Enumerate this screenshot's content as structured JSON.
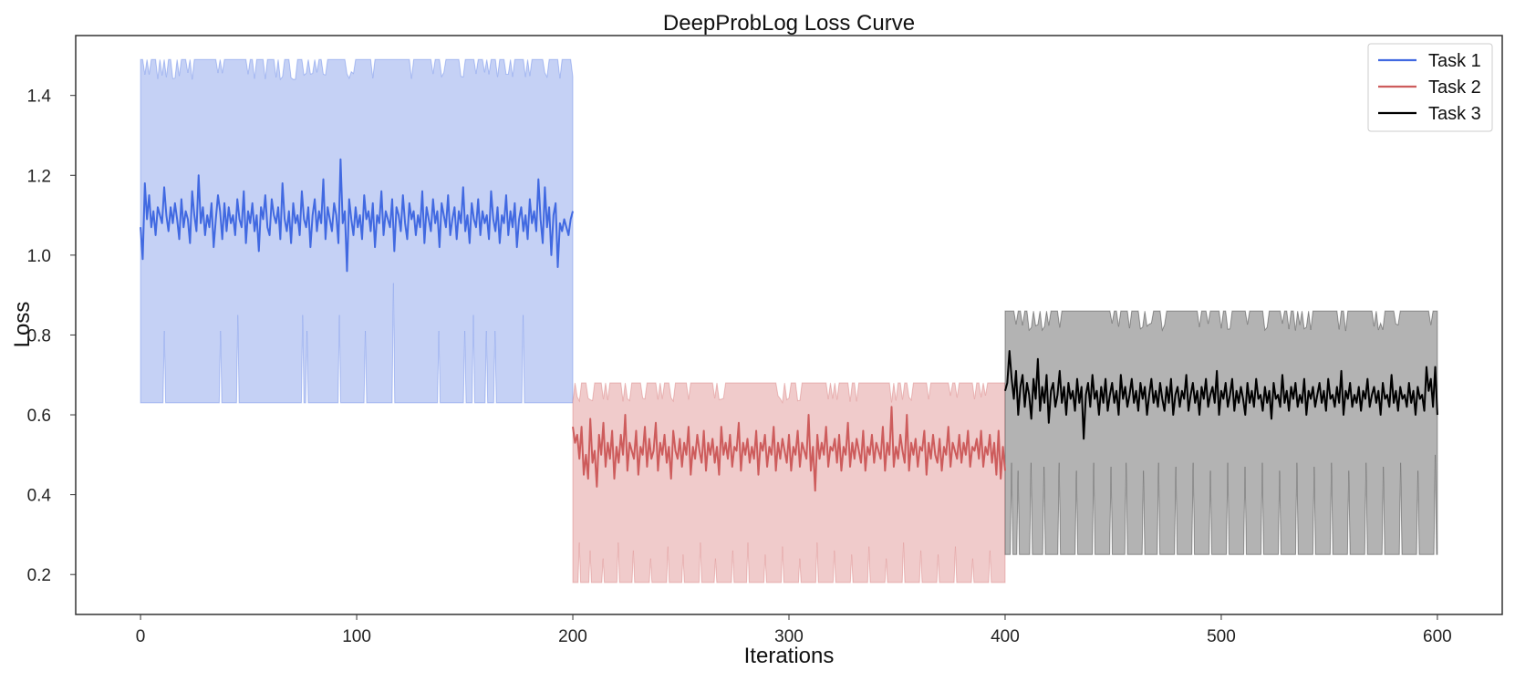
{
  "chart_data": {
    "type": "line",
    "title": "DeepProbLog Loss Curve",
    "xlabel": "Iterations",
    "ylabel": "Loss",
    "xlim": [
      -30,
      630
    ],
    "ylim": [
      0.1,
      1.55
    ],
    "xticks": [
      0,
      100,
      200,
      300,
      400,
      500,
      600
    ],
    "yticks": [
      0.2,
      0.4,
      0.6,
      0.8,
      1.0,
      1.2,
      1.4
    ],
    "ytick_labels": [
      "0.2",
      "0.4",
      "0.6",
      "0.8",
      "1.0",
      "1.2",
      "1.4"
    ],
    "grid": false,
    "legend_position": "top-right",
    "series": [
      {
        "name": "Task 1",
        "color": "#4169e1",
        "band_color": "#c5d1f5",
        "x_range": [
          0,
          200
        ],
        "mean_level": 1.09,
        "band_lower": 0.63,
        "band_upper": 1.49,
        "band_lower_spikes": [
          {
            "x": 11,
            "y": 0.81
          },
          {
            "x": 37,
            "y": 0.81
          },
          {
            "x": 45,
            "y": 0.85
          },
          {
            "x": 75,
            "y": 0.85
          },
          {
            "x": 77,
            "y": 0.81
          },
          {
            "x": 92,
            "y": 0.85
          },
          {
            "x": 104,
            "y": 0.81
          },
          {
            "x": 117,
            "y": 0.93
          },
          {
            "x": 138,
            "y": 0.81
          },
          {
            "x": 150,
            "y": 0.81
          },
          {
            "x": 154,
            "y": 0.85
          },
          {
            "x": 160,
            "y": 0.81
          },
          {
            "x": 164,
            "y": 0.81
          },
          {
            "x": 177,
            "y": 0.85
          }
        ],
        "values": [
          1.07,
          0.99,
          1.18,
          1.09,
          1.15,
          1.07,
          1.11,
          1.05,
          1.12,
          1.1,
          1.08,
          1.17,
          1.1,
          1.06,
          1.12,
          1.08,
          1.13,
          1.09,
          1.04,
          1.14,
          1.07,
          1.11,
          1.09,
          1.03,
          1.16,
          1.1,
          1.06,
          1.2,
          1.08,
          1.12,
          1.05,
          1.1,
          1.07,
          1.13,
          1.02,
          1.09,
          1.15,
          1.11,
          1.04,
          1.13,
          1.06,
          1.12,
          1.08,
          1.1,
          1.05,
          1.14,
          1.09,
          1.07,
          1.16,
          1.03,
          1.11,
          1.08,
          1.13,
          1.06,
          1.1,
          1.01,
          1.12,
          1.09,
          1.15,
          1.07,
          1.05,
          1.14,
          1.1,
          1.08,
          1.12,
          1.04,
          1.18,
          1.09,
          1.06,
          1.11,
          1.03,
          1.13,
          1.08,
          1.1,
          1.05,
          1.16,
          1.09,
          1.07,
          1.12,
          1.02,
          1.1,
          1.14,
          1.06,
          1.11,
          1.08,
          1.19,
          1.04,
          1.12,
          1.09,
          1.06,
          1.13,
          1.1,
          1.03,
          1.24,
          1.08,
          1.11,
          0.96,
          1.14,
          1.09,
          1.05,
          1.12,
          1.07,
          1.1,
          1.04,
          1.15,
          1.09,
          1.11,
          1.06,
          1.13,
          1.02,
          1.1,
          1.08,
          1.16,
          1.05,
          1.11,
          1.09,
          1.07,
          1.14,
          1.01,
          1.12,
          1.1,
          1.06,
          1.15,
          1.08,
          1.04,
          1.13,
          1.09,
          1.11,
          1.05,
          1.1,
          1.07,
          1.16,
          1.03,
          1.12,
          1.09,
          1.06,
          1.14,
          1.08,
          1.11,
          1.02,
          1.13,
          1.1,
          1.07,
          1.15,
          1.05,
          1.09,
          1.12,
          1.04,
          1.11,
          1.08,
          1.17,
          1.06,
          1.1,
          1.03,
          1.13,
          1.09,
          1.07,
          1.14,
          1.05,
          1.11,
          1.08,
          1.1,
          1.04,
          1.16,
          1.09,
          1.06,
          1.12,
          1.03,
          1.1,
          1.08,
          1.15,
          1.05,
          1.11,
          1.07,
          1.13,
          1.02,
          1.09,
          1.12,
          1.06,
          1.1,
          1.04,
          1.14,
          1.08,
          1.11,
          1.06,
          1.19,
          1.09,
          1.03,
          1.17,
          1.07,
          1.12,
          1.0,
          1.1,
          1.13,
          0.97,
          1.08,
          1.06,
          1.09,
          1.07,
          1.05,
          1.09,
          1.11
        ]
      },
      {
        "name": "Task 2",
        "color": "#cd5c5c",
        "band_color": "#f0cbcb",
        "x_range": [
          200,
          400
        ],
        "mean_level": 0.52,
        "band_lower": 0.18,
        "band_upper": 0.68,
        "band_lower_spikes": [
          {
            "x": 203,
            "y": 0.28
          },
          {
            "x": 208,
            "y": 0.26
          },
          {
            "x": 214,
            "y": 0.24
          },
          {
            "x": 221,
            "y": 0.28
          },
          {
            "x": 228,
            "y": 0.26
          },
          {
            "x": 236,
            "y": 0.24
          },
          {
            "x": 244,
            "y": 0.27
          },
          {
            "x": 251,
            "y": 0.25
          },
          {
            "x": 259,
            "y": 0.28
          },
          {
            "x": 266,
            "y": 0.24
          },
          {
            "x": 274,
            "y": 0.26
          },
          {
            "x": 281,
            "y": 0.28
          },
          {
            "x": 289,
            "y": 0.25
          },
          {
            "x": 297,
            "y": 0.27
          },
          {
            "x": 305,
            "y": 0.24
          },
          {
            "x": 313,
            "y": 0.28
          },
          {
            "x": 321,
            "y": 0.26
          },
          {
            "x": 329,
            "y": 0.25
          },
          {
            "x": 337,
            "y": 0.27
          },
          {
            "x": 345,
            "y": 0.24
          },
          {
            "x": 353,
            "y": 0.28
          },
          {
            "x": 361,
            "y": 0.26
          },
          {
            "x": 369,
            "y": 0.25
          },
          {
            "x": 377,
            "y": 0.27
          },
          {
            "x": 385,
            "y": 0.24
          },
          {
            "x": 393,
            "y": 0.26
          }
        ],
        "values": [
          0.57,
          0.53,
          0.55,
          0.49,
          0.57,
          0.45,
          0.5,
          0.44,
          0.59,
          0.48,
          0.51,
          0.42,
          0.55,
          0.5,
          0.58,
          0.47,
          0.53,
          0.49,
          0.56,
          0.44,
          0.52,
          0.48,
          0.55,
          0.5,
          0.6,
          0.46,
          0.53,
          0.51,
          0.49,
          0.56,
          0.45,
          0.52,
          0.5,
          0.57,
          0.47,
          0.54,
          0.49,
          0.51,
          0.58,
          0.46,
          0.53,
          0.5,
          0.55,
          0.48,
          0.52,
          0.44,
          0.56,
          0.51,
          0.49,
          0.54,
          0.47,
          0.53,
          0.5,
          0.57,
          0.45,
          0.52,
          0.49,
          0.55,
          0.51,
          0.48,
          0.56,
          0.46,
          0.53,
          0.5,
          0.54,
          0.48,
          0.52,
          0.45,
          0.57,
          0.5,
          0.53,
          0.49,
          0.55,
          0.47,
          0.52,
          0.51,
          0.58,
          0.46,
          0.53,
          0.5,
          0.54,
          0.48,
          0.52,
          0.49,
          0.56,
          0.45,
          0.53,
          0.51,
          0.55,
          0.47,
          0.52,
          0.5,
          0.57,
          0.46,
          0.53,
          0.49,
          0.54,
          0.51,
          0.48,
          0.55,
          0.46,
          0.52,
          0.5,
          0.56,
          0.47,
          0.53,
          0.51,
          0.49,
          0.6,
          0.46,
          0.52,
          0.41,
          0.55,
          0.49,
          0.53,
          0.5,
          0.57,
          0.47,
          0.52,
          0.51,
          0.54,
          0.48,
          0.55,
          0.46,
          0.52,
          0.5,
          0.58,
          0.47,
          0.53,
          0.49,
          0.54,
          0.51,
          0.48,
          0.56,
          0.46,
          0.52,
          0.5,
          0.55,
          0.48,
          0.53,
          0.51,
          0.49,
          0.57,
          0.46,
          0.53,
          0.5,
          0.62,
          0.47,
          0.52,
          0.49,
          0.55,
          0.51,
          0.48,
          0.6,
          0.46,
          0.53,
          0.5,
          0.54,
          0.47,
          0.52,
          0.51,
          0.56,
          0.45,
          0.53,
          0.49,
          0.55,
          0.5,
          0.48,
          0.54,
          0.46,
          0.52,
          0.5,
          0.57,
          0.47,
          0.53,
          0.51,
          0.49,
          0.55,
          0.48,
          0.53,
          0.5,
          0.56,
          0.47,
          0.52,
          0.51,
          0.54,
          0.49,
          0.56,
          0.47,
          0.52,
          0.5,
          0.55,
          0.48,
          0.53,
          0.45,
          0.56,
          0.44,
          0.52,
          0.46
        ]
      },
      {
        "name": "Task 3",
        "color": "#000000",
        "band_color": "#b3b3b3",
        "x_range": [
          400,
          600
        ],
        "mean_level": 0.65,
        "band_lower": 0.25,
        "band_upper": 0.86,
        "band_lower_spikes": [
          {
            "x": 403,
            "y": 0.48
          },
          {
            "x": 406,
            "y": 0.46
          },
          {
            "x": 412,
            "y": 0.48
          },
          {
            "x": 418,
            "y": 0.47
          },
          {
            "x": 425,
            "y": 0.48
          },
          {
            "x": 433,
            "y": 0.46
          },
          {
            "x": 441,
            "y": 0.48
          },
          {
            "x": 449,
            "y": 0.47
          },
          {
            "x": 456,
            "y": 0.48
          },
          {
            "x": 464,
            "y": 0.46
          },
          {
            "x": 471,
            "y": 0.48
          },
          {
            "x": 479,
            "y": 0.47
          },
          {
            "x": 487,
            "y": 0.48
          },
          {
            "x": 495,
            "y": 0.46
          },
          {
            "x": 503,
            "y": 0.48
          },
          {
            "x": 511,
            "y": 0.47
          },
          {
            "x": 519,
            "y": 0.48
          },
          {
            "x": 527,
            "y": 0.46
          },
          {
            "x": 535,
            "y": 0.48
          },
          {
            "x": 543,
            "y": 0.47
          },
          {
            "x": 551,
            "y": 0.48
          },
          {
            "x": 559,
            "y": 0.46
          },
          {
            "x": 567,
            "y": 0.48
          },
          {
            "x": 575,
            "y": 0.47
          },
          {
            "x": 583,
            "y": 0.48
          },
          {
            "x": 591,
            "y": 0.46
          },
          {
            "x": 599,
            "y": 0.5
          }
        ],
        "values": [
          0.66,
          0.68,
          0.76,
          0.69,
          0.64,
          0.71,
          0.6,
          0.67,
          0.7,
          0.62,
          0.68,
          0.65,
          0.59,
          0.69,
          0.64,
          0.74,
          0.61,
          0.67,
          0.63,
          0.7,
          0.58,
          0.66,
          0.68,
          0.62,
          0.65,
          0.71,
          0.63,
          0.67,
          0.6,
          0.68,
          0.64,
          0.66,
          0.61,
          0.69,
          0.63,
          0.67,
          0.54,
          0.65,
          0.68,
          0.62,
          0.7,
          0.64,
          0.66,
          0.6,
          0.67,
          0.63,
          0.69,
          0.61,
          0.65,
          0.68,
          0.63,
          0.66,
          0.6,
          0.7,
          0.64,
          0.67,
          0.62,
          0.65,
          0.69,
          0.63,
          0.66,
          0.61,
          0.68,
          0.64,
          0.67,
          0.6,
          0.65,
          0.69,
          0.63,
          0.66,
          0.62,
          0.68,
          0.64,
          0.61,
          0.67,
          0.63,
          0.69,
          0.6,
          0.65,
          0.67,
          0.62,
          0.66,
          0.64,
          0.7,
          0.61,
          0.65,
          0.68,
          0.63,
          0.66,
          0.6,
          0.67,
          0.64,
          0.69,
          0.62,
          0.65,
          0.67,
          0.63,
          0.71,
          0.6,
          0.66,
          0.64,
          0.68,
          0.62,
          0.65,
          0.69,
          0.61,
          0.66,
          0.63,
          0.67,
          0.64,
          0.6,
          0.68,
          0.63,
          0.66,
          0.62,
          0.69,
          0.64,
          0.65,
          0.61,
          0.67,
          0.63,
          0.66,
          0.59,
          0.68,
          0.64,
          0.65,
          0.62,
          0.7,
          0.63,
          0.66,
          0.61,
          0.67,
          0.64,
          0.68,
          0.62,
          0.65,
          0.63,
          0.69,
          0.6,
          0.66,
          0.64,
          0.67,
          0.62,
          0.65,
          0.68,
          0.63,
          0.66,
          0.61,
          0.69,
          0.64,
          0.65,
          0.62,
          0.67,
          0.63,
          0.71,
          0.6,
          0.66,
          0.64,
          0.68,
          0.62,
          0.65,
          0.63,
          0.67,
          0.61,
          0.66,
          0.64,
          0.69,
          0.62,
          0.65,
          0.67,
          0.63,
          0.66,
          0.6,
          0.68,
          0.64,
          0.65,
          0.62,
          0.7,
          0.63,
          0.66,
          0.61,
          0.67,
          0.64,
          0.65,
          0.62,
          0.68,
          0.63,
          0.66,
          0.6,
          0.67,
          0.64,
          0.65,
          0.61,
          0.72,
          0.66,
          0.69,
          0.62,
          0.72,
          0.6
        ]
      }
    ]
  }
}
